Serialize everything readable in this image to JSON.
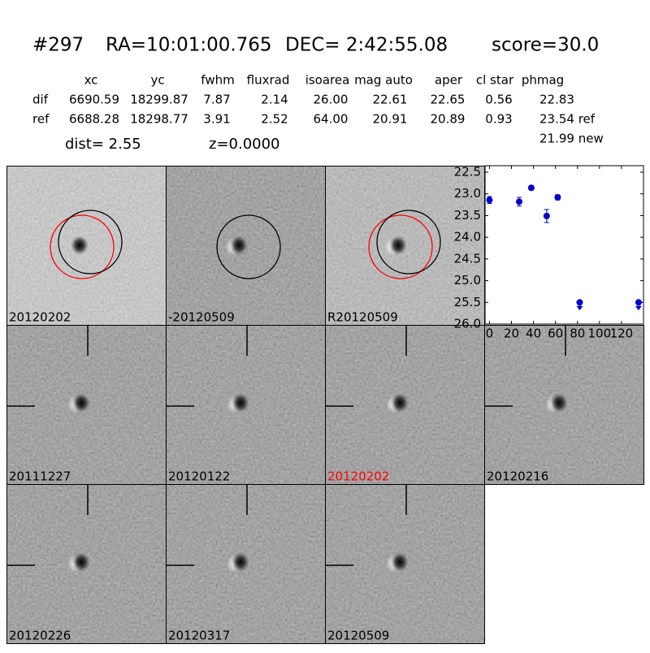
{
  "header": {
    "id": "#297",
    "ra": "RA=10:01:00.765",
    "dec": "DEC= 2:42:55.08",
    "score": "score=30.0"
  },
  "table": {
    "columns": [
      "xc",
      "yc",
      "fwhm",
      "fluxrad",
      "isoarea",
      "mag auto",
      "aper",
      "cl star",
      "phmag"
    ],
    "rows": [
      [
        "dif",
        "6690.59",
        "18299.87",
        "7.87",
        "2.14",
        "26.00",
        "22.61",
        "22.65",
        "0.56",
        "22.83"
      ],
      [
        "ref",
        "6688.28",
        "18298.77",
        "3.91",
        "2.52",
        "64.00",
        "20.91",
        "20.89",
        "0.93",
        "23.54 ref"
      ]
    ],
    "extra": "21.99 new"
  },
  "dist": "dist=  2.55",
  "z": "z=0.0000",
  "stamps": [
    {
      "label": "20120202",
      "color": "#000000"
    },
    {
      "label": "-20120509",
      "color": "#000000"
    },
    {
      "label": "R20120509",
      "color": "#000000"
    },
    {
      "label": "20111227",
      "color": "#000000"
    },
    {
      "label": "20120122",
      "color": "#000000"
    },
    {
      "label": "20120202",
      "color": "#ff0000"
    },
    {
      "label": "20120216",
      "color": "#000000"
    },
    {
      "label": "20120226",
      "color": "#000000"
    },
    {
      "label": "20120317",
      "color": "#000000"
    },
    {
      "label": "20120509",
      "color": "#000000"
    }
  ],
  "chart_data": {
    "type": "scatter",
    "color": "#0000cc",
    "x": [
      0,
      27,
      38,
      52,
      62
    ],
    "values": [
      23.14,
      23.18,
      22.86,
      23.51,
      23.08
    ],
    "errors": [
      0.08,
      0.1,
      0.05,
      0.15,
      0.06
    ],
    "limit_x": [
      82,
      135.5
    ],
    "limit_values": [
      25.5,
      25.5
    ],
    "xlim": [
      -4,
      140
    ],
    "ylim": [
      26.0,
      22.35
    ],
    "xticks": [
      0,
      20,
      40,
      60,
      80,
      100,
      120
    ],
    "yticks": [
      22.5,
      {
        "value": 23.0,
        "label": "23.0"
      },
      23.5,
      {
        "value": 24.0,
        "label": "24.0"
      },
      24.5,
      {
        "value": 25.0,
        "label": "25.0"
      },
      25.5,
      {
        "value": 26.0,
        "label": "26.0"
      }
    ]
  }
}
